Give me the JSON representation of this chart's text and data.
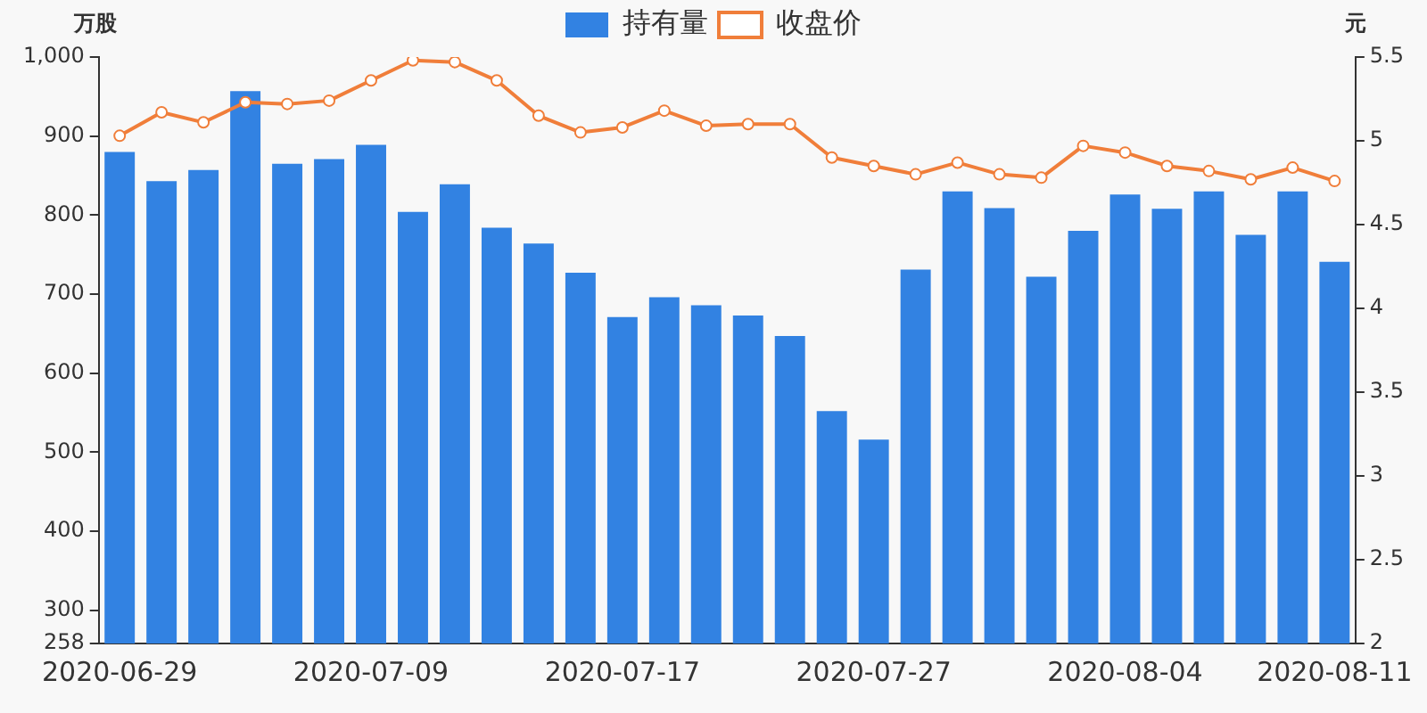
{
  "chart_data": {
    "type": "bar",
    "categories": [
      "2020-06-29",
      null,
      null,
      null,
      null,
      null,
      "2020-07-09",
      null,
      null,
      null,
      null,
      null,
      "2020-07-17",
      null,
      null,
      null,
      null,
      null,
      "2020-07-27",
      null,
      null,
      null,
      null,
      null,
      "2020-08-04",
      null,
      null,
      null,
      null,
      "2020-08-11"
    ],
    "series": [
      {
        "name": "持有量",
        "color": "#3282e2",
        "values": [
          880,
          843,
          857,
          957,
          865,
          871,
          889,
          804,
          839,
          784,
          764,
          727,
          671,
          696,
          686,
          673,
          647,
          552,
          516,
          731,
          830,
          809,
          722,
          780,
          826,
          808,
          830,
          775,
          830,
          741
        ]
      },
      {
        "name": "收盘价",
        "type": "line",
        "axis": "y2",
        "color": "#f07e3a",
        "marker": "circle",
        "values": [
          5.03,
          5.17,
          5.11,
          5.23,
          5.22,
          5.24,
          5.36,
          5.48,
          5.47,
          5.36,
          5.15,
          5.05,
          5.08,
          5.18,
          5.09,
          5.1,
          5.1,
          4.9,
          4.85,
          4.8,
          4.87,
          4.8,
          4.78,
          4.97,
          4.93,
          4.85,
          4.82,
          4.77,
          4.84,
          4.76
        ]
      }
    ],
    "ylabel": "万股",
    "y2label": "元",
    "ylim": [
      258,
      1000
    ],
    "yticks": [
      {
        "value": 258,
        "label": "258"
      },
      300,
      400,
      500,
      600,
      700,
      800,
      900,
      {
        "value": 1000,
        "label": "1,000"
      }
    ],
    "y2lim": [
      2,
      5.5
    ],
    "y2ticks": [
      2,
      2.5,
      3,
      3.5,
      4,
      4.5,
      5,
      5.5
    ],
    "legend": "top",
    "grid": false
  }
}
